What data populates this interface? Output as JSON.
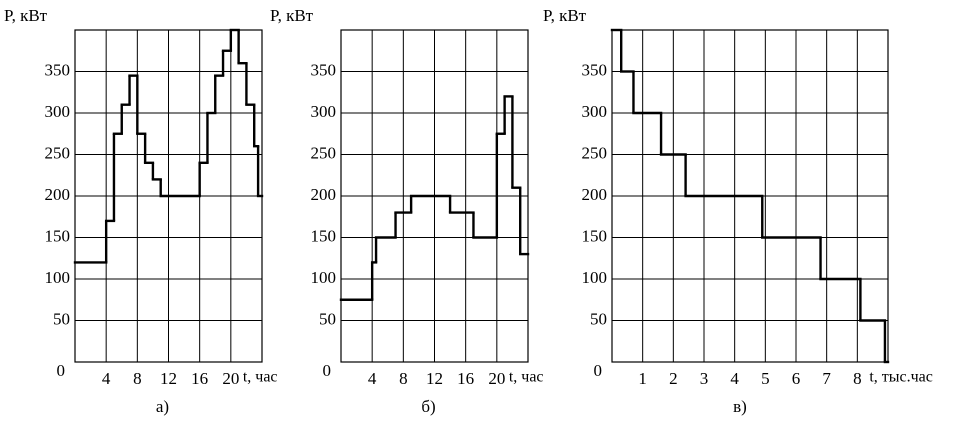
{
  "chart_data": [
    {
      "type": "step",
      "ylabel": "P, кВт",
      "xlabel": "t, час",
      "caption": "а)",
      "x": [
        0,
        4,
        5,
        6,
        7,
        8,
        9,
        10,
        11,
        16,
        17,
        18,
        19,
        20,
        21,
        22,
        23,
        23.5
      ],
      "values": [
        120,
        170,
        275,
        310,
        345,
        275,
        240,
        220,
        200,
        240,
        300,
        345,
        375,
        400,
        360,
        310,
        260,
        200
      ],
      "xlim": [
        0,
        24
      ],
      "ylim": [
        0,
        400
      ],
      "xticks": [
        4,
        8,
        12,
        16,
        20
      ],
      "yticks": [
        0,
        50,
        100,
        150,
        200,
        250,
        300,
        350
      ],
      "grid": true,
      "color": "#000000"
    },
    {
      "type": "step",
      "ylabel": "P, кВт",
      "xlabel": "t, час",
      "caption": "б)",
      "x": [
        0,
        4,
        4.5,
        7,
        9,
        14,
        17,
        20,
        21,
        22,
        23
      ],
      "values": [
        75,
        120,
        150,
        180,
        200,
        180,
        150,
        275,
        320,
        210,
        130
      ],
      "xlim": [
        0,
        24
      ],
      "ylim": [
        0,
        400
      ],
      "xticks": [
        4,
        8,
        12,
        16,
        20
      ],
      "yticks": [
        0,
        50,
        100,
        150,
        200,
        250,
        300,
        350
      ],
      "grid": true,
      "color": "#000000"
    },
    {
      "type": "step",
      "ylabel": "P, кВт",
      "xlabel": "t, тыс.час",
      "caption": "в)",
      "x": [
        0,
        0.3,
        0.7,
        1.6,
        2.4,
        4.9,
        6.8,
        8.1,
        8.9
      ],
      "values": [
        400,
        350,
        300,
        250,
        200,
        150,
        100,
        50,
        0
      ],
      "xlim": [
        0,
        9
      ],
      "ylim": [
        0,
        400
      ],
      "xticks": [
        1,
        2,
        3,
        4,
        5,
        6,
        7,
        8
      ],
      "yticks": [
        0,
        50,
        100,
        150,
        200,
        250,
        300,
        350
      ],
      "grid": true,
      "color": "#000000"
    }
  ]
}
